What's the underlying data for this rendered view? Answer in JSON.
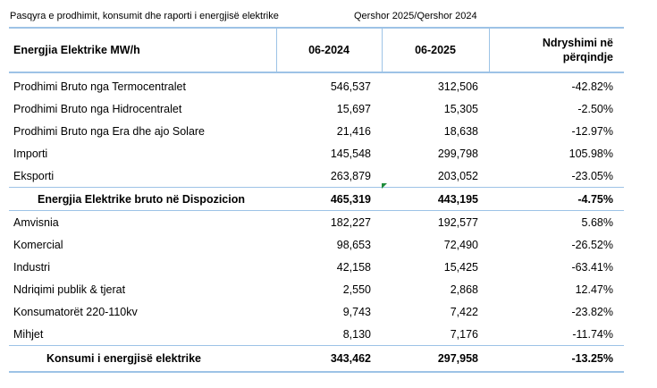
{
  "title": "Pasqyra e prodhimit, konsumit dhe raporti i energjisë elektrike",
  "period": "Qershor 2025/Qershor  2024",
  "header": {
    "label": "Energjia Elektrike MW/h",
    "col1": "06-2024",
    "col2": "06-2025",
    "col3_line1": "Ndryshimi në",
    "col3_line2": "përqindje"
  },
  "production_rows": [
    {
      "label": "Prodhimi Bruto nga Termocentralet",
      "v2024": "546,537",
      "v2025": "312,506",
      "change": "-42.82%"
    },
    {
      "label": "Prodhimi Bruto nga Hidrocentralet",
      "v2024": "15,697",
      "v2025": "15,305",
      "change": "-2.50%"
    },
    {
      "label": "Prodhimi Bruto nga Era dhe ajo Solare",
      "v2024": "21,416",
      "v2025": "18,638",
      "change": "-12.97%"
    },
    {
      "label": "Importi",
      "v2024": "145,548",
      "v2025": "299,798",
      "change": "105.98%"
    },
    {
      "label": "Eksporti",
      "v2024": "263,879",
      "v2025": "203,052",
      "change": "-23.05%"
    }
  ],
  "availability_total": {
    "label": "Energjia Elektrike bruto në Dispozicion",
    "v2024": "465,319",
    "v2025": "443,195",
    "change": "-4.75%"
  },
  "consumption_rows": [
    {
      "label": "Amvisnia",
      "v2024": "182,227",
      "v2025": "192,577",
      "change": "5.68%"
    },
    {
      "label": "Komercial",
      "v2024": "98,653",
      "v2025": "72,490",
      "change": "-26.52%"
    },
    {
      "label": "Industri",
      "v2024": "42,158",
      "v2025": "15,425",
      "change": "-63.41%"
    },
    {
      "label": "Ndriqimi publik & tjerat",
      "v2024": "2,550",
      "v2025": "2,868",
      "change": "12.47%"
    },
    {
      "label": "Konsumatorët  220-110kv",
      "v2024": "9,743",
      "v2025": "7,422",
      "change": "-23.82%"
    },
    {
      "label": "Mihjet",
      "v2024": "8,130",
      "v2025": "7,176",
      "change": "-11.74%"
    }
  ],
  "consumption_total": {
    "label": "Konsumi i energjisë elektrike",
    "v2024": "343,462",
    "v2025": "297,958",
    "change": "-13.25%"
  }
}
